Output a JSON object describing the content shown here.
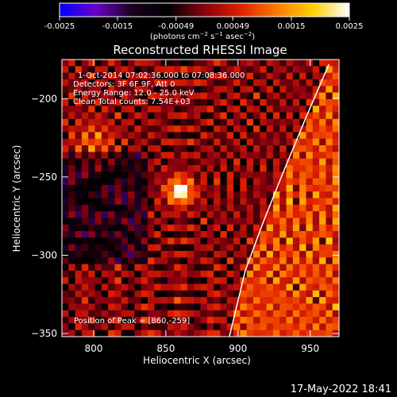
{
  "colorbar": {
    "tick_labels": [
      "-0.0025",
      "-0.0015",
      "-0.00049",
      "0.00049",
      "0.0015",
      "0.0025"
    ],
    "tick_values": [
      -0.0025,
      -0.0015,
      -0.00049,
      0.00049,
      0.0015,
      0.0025
    ],
    "range": [
      -0.0025,
      0.0025
    ],
    "units_prefix": "(photons cm",
    "units_exp1": "−2",
    "units_mid": " s",
    "units_exp2": "−1",
    "units_suffix": " asec",
    "units_exp3": "−2",
    "units_close": ")",
    "colormap_stops": [
      "#0000ff",
      "#6a00c8",
      "#1a0020",
      "#000000",
      "#8a0010",
      "#e02000",
      "#ff7a00",
      "#ffd000",
      "#ffffff"
    ]
  },
  "chart_data": {
    "type": "heatmap",
    "title": "Reconstructed RHESSI Image",
    "xlabel": "Heliocentric X (arcsec)",
    "ylabel": "Heliocentric Y (arcsec)",
    "xlim": [
      778,
      970
    ],
    "ylim": [
      -352,
      -175
    ],
    "x_ticks": [
      800,
      850,
      900,
      950
    ],
    "y_ticks": [
      -200,
      -250,
      -300,
      -350
    ],
    "peak_position": [
      860,
      -259
    ],
    "limb_curve": [
      [
        894,
        -352
      ],
      [
        905,
        -310
      ],
      [
        917,
        -280
      ],
      [
        930,
        -250
      ],
      [
        948,
        -210
      ],
      [
        963,
        -178
      ]
    ],
    "info_lines": [
      "1-Oct-2014 07:02:36.000 to 07:08:36.000",
      "Detectors: 3F 6F 9F, Att 0",
      "Energy Range: 12.0 - 25.0 keV",
      "Clean      Total counts: 7.54E+03"
    ],
    "peak_label": "Position of Peak = [860,-259]"
  },
  "footer": {
    "timestamp": "17-May-2022 18:41"
  }
}
